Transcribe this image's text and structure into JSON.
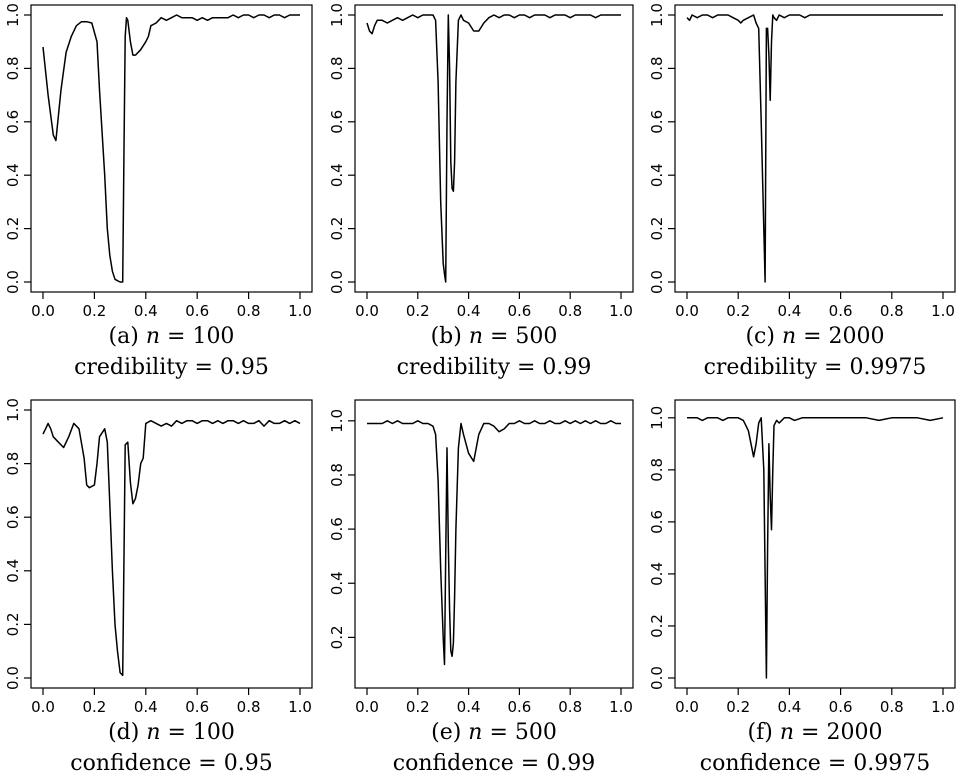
{
  "chart_data": [
    {
      "type": "line",
      "caption": {
        "label": "(a)",
        "n_sym": "n",
        "eq": "= 100",
        "line2_name": "credibility",
        "line2_eq": "= 0.95"
      },
      "xlim": [
        0,
        1
      ],
      "ylim": [
        0,
        1
      ],
      "xticks": [
        "0.0",
        "0.2",
        "0.4",
        "0.6",
        "0.8",
        "1.0"
      ],
      "yticks": [
        "0.0",
        "0.2",
        "0.4",
        "0.6",
        "0.8",
        "1.0"
      ],
      "x": [
        0,
        0.02,
        0.04,
        0.05,
        0.07,
        0.09,
        0.11,
        0.13,
        0.15,
        0.17,
        0.19,
        0.21,
        0.22,
        0.24,
        0.25,
        0.26,
        0.27,
        0.28,
        0.29,
        0.3,
        0.31,
        0.315,
        0.32,
        0.325,
        0.33,
        0.34,
        0.35,
        0.36,
        0.38,
        0.4,
        0.41,
        0.42,
        0.44,
        0.46,
        0.48,
        0.5,
        0.52,
        0.54,
        0.56,
        0.58,
        0.6,
        0.62,
        0.64,
        0.66,
        0.68,
        0.7,
        0.72,
        0.74,
        0.76,
        0.78,
        0.8,
        0.82,
        0.84,
        0.86,
        0.88,
        0.9,
        0.92,
        0.94,
        0.96,
        0.98,
        1.0
      ],
      "values": [
        0.88,
        0.7,
        0.55,
        0.53,
        0.72,
        0.86,
        0.92,
        0.96,
        0.975,
        0.975,
        0.97,
        0.9,
        0.72,
        0.4,
        0.2,
        0.1,
        0.04,
        0.01,
        0.005,
        0.0,
        0.0,
        0.5,
        0.92,
        0.99,
        0.98,
        0.9,
        0.85,
        0.85,
        0.87,
        0.9,
        0.92,
        0.96,
        0.97,
        0.99,
        0.98,
        0.99,
        1.0,
        0.99,
        0.99,
        0.99,
        0.98,
        0.99,
        0.98,
        0.99,
        0.99,
        0.99,
        0.99,
        1.0,
        0.99,
        1.0,
        1.0,
        0.99,
        1.0,
        1.0,
        0.99,
        1.0,
        1.0,
        0.99,
        1.0,
        1.0,
        1.0
      ]
    },
    {
      "type": "line",
      "caption": {
        "label": "(b)",
        "n_sym": "n",
        "eq": "= 500",
        "line2_name": "credibility",
        "line2_eq": "= 0.99"
      },
      "xlim": [
        0,
        1
      ],
      "ylim": [
        0,
        1
      ],
      "xticks": [
        "0.0",
        "0.2",
        "0.4",
        "0.6",
        "0.8",
        "1.0"
      ],
      "yticks": [
        "0.0",
        "0.2",
        "0.4",
        "0.6",
        "0.8",
        "1.0"
      ],
      "x": [
        0,
        0.01,
        0.02,
        0.03,
        0.04,
        0.06,
        0.08,
        0.1,
        0.12,
        0.14,
        0.16,
        0.18,
        0.2,
        0.22,
        0.24,
        0.26,
        0.27,
        0.28,
        0.29,
        0.3,
        0.305,
        0.31,
        0.315,
        0.32,
        0.325,
        0.33,
        0.335,
        0.34,
        0.345,
        0.35,
        0.36,
        0.37,
        0.38,
        0.4,
        0.42,
        0.44,
        0.46,
        0.48,
        0.5,
        0.52,
        0.54,
        0.56,
        0.58,
        0.6,
        0.62,
        0.64,
        0.66,
        0.68,
        0.7,
        0.72,
        0.74,
        0.76,
        0.78,
        0.8,
        0.82,
        0.84,
        0.86,
        0.88,
        0.9,
        0.92,
        0.94,
        0.96,
        0.98,
        1.0
      ],
      "values": [
        0.97,
        0.94,
        0.93,
        0.96,
        0.98,
        0.98,
        0.97,
        0.98,
        0.99,
        0.98,
        0.99,
        1.0,
        0.99,
        1.0,
        1.0,
        1.0,
        0.98,
        0.75,
        0.3,
        0.07,
        0.03,
        0.0,
        0.6,
        1.0,
        0.8,
        0.45,
        0.35,
        0.34,
        0.45,
        0.75,
        0.98,
        1.0,
        0.98,
        0.97,
        0.94,
        0.94,
        0.97,
        0.99,
        1.0,
        0.99,
        1.0,
        1.0,
        0.99,
        1.0,
        1.0,
        0.99,
        1.0,
        1.0,
        1.0,
        0.99,
        1.0,
        1.0,
        1.0,
        0.99,
        1.0,
        1.0,
        1.0,
        1.0,
        0.99,
        1.0,
        1.0,
        1.0,
        1.0,
        1.0
      ]
    },
    {
      "type": "line",
      "caption": {
        "label": "(c)",
        "n_sym": "n",
        "eq": "= 2000",
        "line2_name": "credibility",
        "line2_eq": "= 0.9975"
      },
      "xlim": [
        0,
        1
      ],
      "ylim": [
        0,
        1
      ],
      "xticks": [
        "0.0",
        "0.2",
        "0.4",
        "0.6",
        "0.8",
        "1.0"
      ],
      "yticks": [
        "0.0",
        "0.2",
        "0.4",
        "0.6",
        "0.8",
        "1.0"
      ],
      "x": [
        0,
        0.01,
        0.02,
        0.04,
        0.06,
        0.08,
        0.1,
        0.12,
        0.14,
        0.16,
        0.18,
        0.2,
        0.21,
        0.22,
        0.24,
        0.26,
        0.27,
        0.28,
        0.29,
        0.3,
        0.305,
        0.31,
        0.315,
        0.32,
        0.325,
        0.33,
        0.335,
        0.34,
        0.35,
        0.36,
        0.38,
        0.4,
        0.42,
        0.44,
        0.46,
        0.48,
        0.5,
        0.55,
        0.6,
        0.65,
        0.7,
        0.75,
        0.8,
        0.85,
        0.9,
        0.95,
        1.0
      ],
      "values": [
        0.99,
        0.98,
        1.0,
        0.99,
        1.0,
        1.0,
        0.99,
        1.0,
        1.0,
        1.0,
        0.99,
        0.98,
        0.97,
        0.98,
        0.99,
        1.0,
        0.97,
        0.95,
        0.6,
        0.2,
        0.0,
        0.95,
        0.95,
        0.85,
        0.68,
        0.9,
        1.0,
        0.99,
        0.98,
        1.0,
        0.99,
        1.0,
        1.0,
        1.0,
        0.99,
        1.0,
        1.0,
        1.0,
        1.0,
        1.0,
        1.0,
        1.0,
        1.0,
        1.0,
        1.0,
        1.0,
        1.0
      ]
    },
    {
      "type": "line",
      "caption": {
        "label": "(d)",
        "n_sym": "n",
        "eq": "= 100",
        "line2_name": "confidence",
        "line2_eq": "= 0.95"
      },
      "xlim": [
        0,
        1
      ],
      "ylim": [
        0,
        1
      ],
      "xticks": [
        "0.0",
        "0.2",
        "0.4",
        "0.6",
        "0.8",
        "1.0"
      ],
      "yticks": [
        "0.0",
        "0.2",
        "0.4",
        "0.6",
        "0.8",
        "1.0"
      ],
      "x": [
        0,
        0.01,
        0.02,
        0.03,
        0.04,
        0.06,
        0.08,
        0.1,
        0.12,
        0.14,
        0.16,
        0.17,
        0.18,
        0.2,
        0.21,
        0.22,
        0.24,
        0.25,
        0.26,
        0.27,
        0.28,
        0.29,
        0.3,
        0.31,
        0.32,
        0.33,
        0.34,
        0.35,
        0.36,
        0.37,
        0.38,
        0.39,
        0.4,
        0.42,
        0.44,
        0.46,
        0.48,
        0.5,
        0.52,
        0.54,
        0.56,
        0.58,
        0.6,
        0.62,
        0.64,
        0.66,
        0.68,
        0.7,
        0.72,
        0.74,
        0.76,
        0.78,
        0.8,
        0.82,
        0.84,
        0.86,
        0.88,
        0.9,
        0.92,
        0.94,
        0.96,
        0.98,
        1.0
      ],
      "values": [
        0.91,
        0.93,
        0.95,
        0.93,
        0.9,
        0.88,
        0.86,
        0.9,
        0.95,
        0.93,
        0.82,
        0.72,
        0.71,
        0.72,
        0.8,
        0.9,
        0.93,
        0.88,
        0.65,
        0.4,
        0.2,
        0.1,
        0.02,
        0.01,
        0.87,
        0.88,
        0.73,
        0.65,
        0.67,
        0.72,
        0.8,
        0.82,
        0.95,
        0.96,
        0.95,
        0.94,
        0.95,
        0.94,
        0.96,
        0.95,
        0.96,
        0.96,
        0.95,
        0.96,
        0.96,
        0.95,
        0.96,
        0.95,
        0.96,
        0.96,
        0.95,
        0.96,
        0.95,
        0.95,
        0.96,
        0.94,
        0.96,
        0.95,
        0.95,
        0.96,
        0.95,
        0.96,
        0.95
      ]
    },
    {
      "type": "line",
      "caption": {
        "label": "(e)",
        "n_sym": "n",
        "eq": "= 500",
        "line2_name": "confidence",
        "line2_eq": "= 0.99"
      },
      "xlim": [
        0,
        1
      ],
      "ylim": [
        0.05,
        1.04
      ],
      "xticks": [
        "0.0",
        "0.2",
        "0.4",
        "0.6",
        "0.8",
        "1.0"
      ],
      "yticks": [
        "0.2",
        "0.4",
        "0.6",
        "0.8",
        "1.0"
      ],
      "x": [
        0,
        0.02,
        0.04,
        0.06,
        0.08,
        0.1,
        0.12,
        0.14,
        0.16,
        0.18,
        0.2,
        0.22,
        0.24,
        0.26,
        0.27,
        0.28,
        0.29,
        0.3,
        0.305,
        0.31,
        0.315,
        0.32,
        0.325,
        0.33,
        0.335,
        0.34,
        0.345,
        0.35,
        0.36,
        0.37,
        0.38,
        0.4,
        0.42,
        0.44,
        0.46,
        0.48,
        0.5,
        0.52,
        0.54,
        0.56,
        0.58,
        0.6,
        0.62,
        0.64,
        0.66,
        0.68,
        0.7,
        0.72,
        0.74,
        0.76,
        0.78,
        0.8,
        0.82,
        0.84,
        0.86,
        0.88,
        0.9,
        0.92,
        0.94,
        0.96,
        0.98,
        1.0
      ],
      "values": [
        0.99,
        0.99,
        0.99,
        0.99,
        1.0,
        0.99,
        1.0,
        0.99,
        0.99,
        0.99,
        1.0,
        0.99,
        0.99,
        0.98,
        0.95,
        0.78,
        0.45,
        0.2,
        0.1,
        0.5,
        0.9,
        0.55,
        0.3,
        0.15,
        0.13,
        0.18,
        0.35,
        0.6,
        0.9,
        0.99,
        0.95,
        0.88,
        0.85,
        0.95,
        0.99,
        0.99,
        0.98,
        0.96,
        0.97,
        0.99,
        0.99,
        1.0,
        0.99,
        0.99,
        1.0,
        0.99,
        0.99,
        1.0,
        0.99,
        0.99,
        1.0,
        0.99,
        1.0,
        0.99,
        1.0,
        0.99,
        1.0,
        0.99,
        0.99,
        1.0,
        0.99,
        0.99
      ]
    },
    {
      "type": "line",
      "caption": {
        "label": "(f)",
        "n_sym": "n",
        "eq": "= 2000",
        "line2_name": "confidence",
        "line2_eq": "= 0.9975"
      },
      "xlim": [
        0,
        1
      ],
      "ylim": [
        0,
        1.03
      ],
      "xticks": [
        "0.0",
        "0.2",
        "0.4",
        "0.6",
        "0.8",
        "1.0"
      ],
      "yticks": [
        "0.0",
        "0.2",
        "0.4",
        "0.6",
        "0.8",
        "1.0"
      ],
      "x": [
        0,
        0.02,
        0.04,
        0.06,
        0.08,
        0.1,
        0.12,
        0.14,
        0.16,
        0.18,
        0.2,
        0.22,
        0.23,
        0.24,
        0.25,
        0.26,
        0.27,
        0.28,
        0.29,
        0.3,
        0.305,
        0.31,
        0.315,
        0.32,
        0.325,
        0.33,
        0.335,
        0.34,
        0.35,
        0.36,
        0.38,
        0.4,
        0.42,
        0.45,
        0.5,
        0.55,
        0.6,
        0.65,
        0.7,
        0.75,
        0.8,
        0.85,
        0.9,
        0.95,
        1.0
      ],
      "values": [
        1.0,
        1.0,
        1.0,
        0.99,
        1.0,
        1.0,
        1.0,
        0.99,
        1.0,
        1.0,
        1.0,
        0.99,
        0.97,
        0.95,
        0.9,
        0.85,
        0.9,
        0.98,
        1.0,
        0.8,
        0.4,
        0.0,
        0.5,
        0.9,
        0.7,
        0.57,
        0.8,
        0.97,
        0.99,
        0.98,
        1.0,
        1.0,
        0.99,
        1.0,
        1.0,
        1.0,
        1.0,
        1.0,
        1.0,
        0.99,
        1.0,
        1.0,
        1.0,
        0.99,
        1.0
      ]
    }
  ]
}
